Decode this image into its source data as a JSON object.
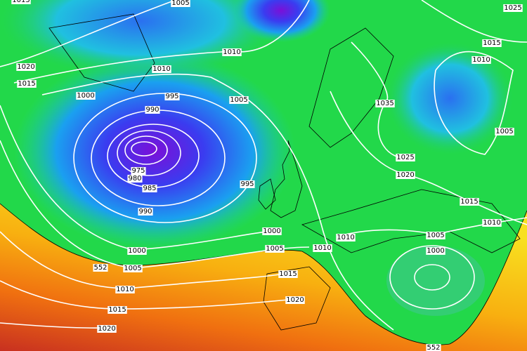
{
  "isobar_labels": [
    "1015",
    "1005",
    "1025",
    "1015",
    "1010",
    "1010",
    "1020",
    "1015",
    "1010",
    "1000",
    "995",
    "1005",
    "1035",
    "990",
    "1005",
    "975",
    "980",
    "985",
    "995",
    "1025",
    "1020",
    "1015",
    "990",
    "1010",
    "1000",
    "1010",
    "1005",
    "1000",
    "1000",
    "1005",
    "1010",
    "552",
    "1005",
    "1015",
    "1010",
    "1020",
    "1015",
    "1020",
    "552"
  ]
}
